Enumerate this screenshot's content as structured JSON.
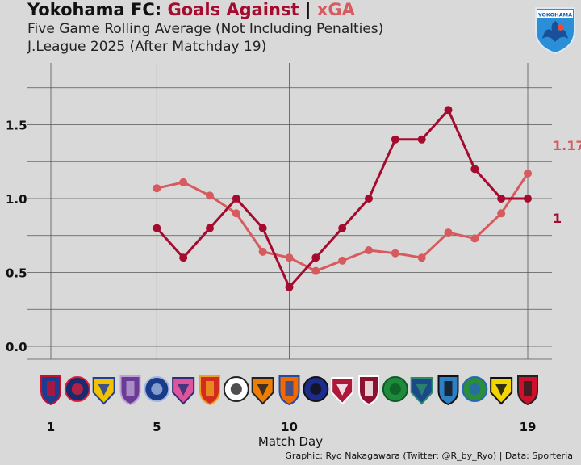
{
  "title": {
    "team": "Yokohama FC:",
    "metric_a": "Goals Against",
    "separator": "|",
    "metric_b": "xGA"
  },
  "subtitle_1": "Five Game Rolling Average (Not Including Penalties)",
  "subtitle_2": "J.League 2025 (After Matchday 19)",
  "credit": "Graphic: Ryo Nakagawara (Twitter: @R_by_Ryo) | Data: Sporteria",
  "crest_text": "YOKOHAMA",
  "colors": {
    "goals_against": "#a50b2e",
    "xga": "#d75a5f",
    "background": "#d9d9d9",
    "grid": "#555555"
  },
  "opponent_badges": [
    {
      "icon": "fc-tokyo-badge",
      "colors": [
        "#1d3b8f",
        "#c8102e"
      ]
    },
    {
      "icon": "machida-zelvia-badge",
      "colors": [
        "#1a2a6c",
        "#d71f3a"
      ]
    },
    {
      "icon": "yokohama-f-marinos-badge",
      "colors": [
        "#f2c200",
        "#1f3f9a"
      ]
    },
    {
      "icon": "sanfrecce-hiroshima-badge",
      "colors": [
        "#6c3b95",
        "#b9a3d1"
      ]
    },
    {
      "icon": "avispa-fukuoka-badge",
      "colors": [
        "#1a3a8a",
        "#9fb6e0"
      ]
    },
    {
      "icon": "cerezo-osaka-badge",
      "colors": [
        "#e0549b",
        "#2a2f7a"
      ]
    },
    {
      "icon": "nagoya-grampus-badge",
      "colors": [
        "#d22b1f",
        "#f0a020"
      ]
    },
    {
      "icon": "vissel-kobe-badge",
      "colors": [
        "#ffffff",
        "#222222"
      ]
    },
    {
      "icon": "shimizu-s-pulse-badge",
      "colors": [
        "#f07d00",
        "#222222"
      ]
    },
    {
      "icon": "albirex-niigata-badge",
      "colors": [
        "#f06a00",
        "#1f4aa8"
      ]
    },
    {
      "icon": "gamba-osaka-badge",
      "colors": [
        "#1d2c8c",
        "#111111"
      ]
    },
    {
      "icon": "kashima-antlers-badge",
      "colors": [
        "#b0183a",
        "#ffffff"
      ]
    },
    {
      "icon": "kyoto-sanga-badge",
      "colors": [
        "#8c1030",
        "#ffffff"
      ]
    },
    {
      "icon": "tokyo-verdy-badge",
      "colors": [
        "#1e8a3c",
        "#0c5a24"
      ]
    },
    {
      "icon": "avispa-badge-2",
      "colors": [
        "#1a4a8a",
        "#2e8a6a"
      ]
    },
    {
      "icon": "kawasaki-frontale-badge",
      "colors": [
        "#2e7fc4",
        "#111111"
      ]
    },
    {
      "icon": "shonan-bellmare-badge",
      "colors": [
        "#2b8c3a",
        "#2566b8"
      ]
    },
    {
      "icon": "kashiwa-reysol-badge",
      "colors": [
        "#f2d400",
        "#111111"
      ]
    },
    {
      "icon": "urawa-reds-badge",
      "colors": [
        "#d0102a",
        "#222222"
      ]
    }
  ],
  "chart_data": {
    "type": "line",
    "title": "Yokohama FC: Goals Against | xGA",
    "xlabel": "Match Day",
    "ylabel": "",
    "xlim": [
      1,
      19
    ],
    "ylim": [
      0,
      1.75
    ],
    "x_ticks": [
      1,
      5,
      10,
      19
    ],
    "y_ticks": [
      "0.0",
      "0.5",
      "1.0",
      "1.5"
    ],
    "y_tick_values": [
      0,
      0.5,
      1.0,
      1.5
    ],
    "grid": true,
    "series": [
      {
        "name": "Goals Against",
        "color": "#a50b2e",
        "x": [
          5,
          6,
          7,
          8,
          9,
          10,
          11,
          12,
          13,
          14,
          15,
          16,
          17,
          18,
          19
        ],
        "y": [
          0.8,
          0.6,
          0.8,
          1.0,
          0.8,
          0.4,
          0.6,
          0.8,
          1.0,
          1.4,
          1.4,
          1.6,
          1.2,
          1.0,
          1.0
        ],
        "end_label": "1"
      },
      {
        "name": "xGA",
        "color": "#d75a5f",
        "x": [
          5,
          6,
          7,
          8,
          9,
          10,
          11,
          12,
          13,
          14,
          15,
          16,
          17,
          18,
          19
        ],
        "y": [
          1.07,
          1.11,
          1.02,
          0.9,
          0.64,
          0.6,
          0.51,
          0.58,
          0.65,
          0.63,
          0.6,
          0.77,
          0.73,
          0.9,
          1.17
        ],
        "end_label": "1.17"
      }
    ]
  }
}
